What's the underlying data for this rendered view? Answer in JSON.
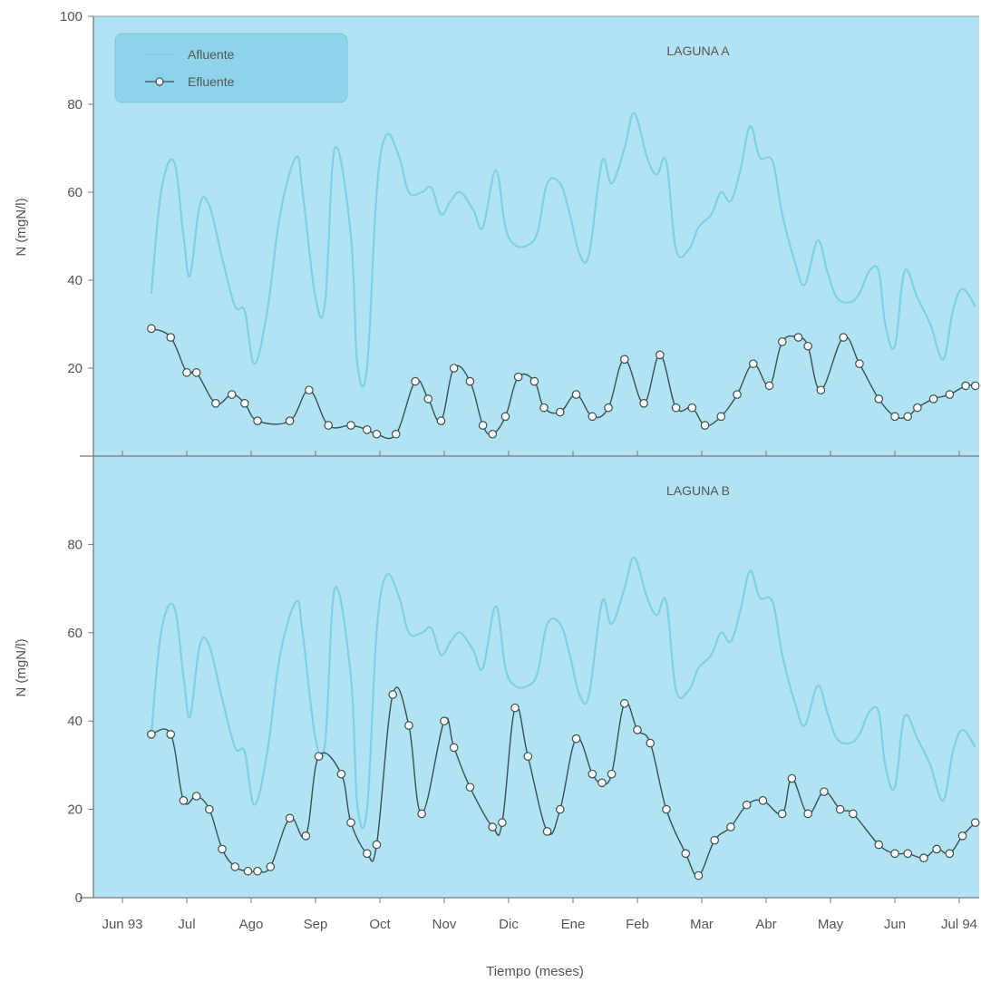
{
  "chart_data": {
    "type": "line",
    "xlabel": "Tiempo (meses)",
    "ylabel": "N (mgN/l)",
    "x_ticks": [
      "Jun 93",
      "Jul",
      "Ago",
      "Sep",
      "Oct",
      "Nov",
      "Dic",
      "Ene",
      "Feb",
      "Mar",
      "Abr",
      "May",
      "Jun",
      "Jul 94"
    ],
    "colors": {
      "afluente": "#7fd0e4",
      "efluente": "#3a4f55",
      "panel_bg": "#b2e3f2",
      "legend_bg": "#8fd3ea"
    },
    "legend": {
      "position": "top-left",
      "entries": [
        {
          "key": "afluente",
          "label": "Afluente"
        },
        {
          "key": "efluente",
          "label": "Efluente"
        }
      ]
    },
    "panels": [
      {
        "title": "LAGUNA A",
        "ylim": [
          0,
          100
        ],
        "y_ticks": [
          "100",
          "80",
          "60",
          "40",
          "20"
        ],
        "series": [
          {
            "name": "Afluente",
            "key": "afluente",
            "x": [
              0.45,
              0.6,
              0.8,
              0.95,
              1.05,
              1.2,
              1.35,
              1.55,
              1.75,
              1.9,
              2.05,
              2.25,
              2.45,
              2.7,
              2.8,
              3.0,
              3.15,
              3.3,
              3.55,
              3.65,
              3.8,
              3.95,
              4.1,
              4.3,
              4.45,
              4.65,
              4.8,
              4.95,
              5.1,
              5.25,
              5.45,
              5.6,
              5.8,
              5.95,
              6.1,
              6.3,
              6.45,
              6.6,
              6.8,
              6.95,
              7.1,
              7.25,
              7.45,
              7.6,
              7.8,
              7.95,
              8.15,
              8.3,
              8.45,
              8.6,
              8.8,
              8.95,
              9.15,
              9.3,
              9.45,
              9.6,
              9.75,
              9.9,
              10.1,
              10.25,
              10.45,
              10.6,
              10.8,
              10.95,
              11.1,
              11.3,
              11.45,
              11.6,
              11.75,
              11.85,
              12.0,
              12.15,
              12.35,
              12.55,
              12.75,
              12.9,
              13.05,
              13.25
            ],
            "y": [
              37,
              60,
              67,
              50,
              41,
              57,
              57,
              45,
              34,
              33,
              21,
              33,
              55,
              68,
              60,
              36,
              35,
              70,
              50,
              21,
              20,
              60,
              73,
              68,
              60,
              60,
              61,
              55,
              58,
              60,
              56,
              52,
              65,
              52,
              48,
              48,
              51,
              62,
              62,
              55,
              46,
              46,
              67,
              62,
              70,
              78,
              68,
              64,
              67,
              47,
              47,
              52,
              55,
              60,
              58,
              65,
              75,
              68,
              67,
              55,
              44,
              39,
              49,
              42,
              36,
              35,
              37,
              42,
              42,
              30,
              25,
              42,
              36,
              30,
              22,
              33,
              38,
              34
            ],
            "values": [
              37,
              60,
              67,
              50,
              41,
              57,
              57,
              45,
              34,
              33,
              21,
              33,
              55,
              68,
              60,
              36,
              35,
              70,
              50,
              21,
              20,
              60,
              73,
              68,
              60,
              60,
              61,
              55,
              58,
              60,
              56,
              52,
              65,
              52,
              48,
              48,
              51,
              62,
              62,
              55,
              46,
              46,
              67,
              62,
              70,
              78,
              68,
              64,
              67,
              47,
              47,
              52,
              55,
              60,
              58,
              65,
              75,
              68,
              67,
              55,
              44,
              39,
              49,
              42,
              36,
              35,
              37,
              42,
              42,
              30,
              25,
              42,
              36,
              30,
              22,
              33,
              38,
              34
            ]
          },
          {
            "name": "Efluente",
            "key": "efluente",
            "x": [
              0.45,
              0.75,
              1.0,
              1.15,
              1.45,
              1.7,
              1.9,
              2.1,
              2.6,
              2.9,
              3.2,
              3.55,
              3.8,
              3.95,
              4.25,
              4.55,
              4.75,
              4.95,
              5.15,
              5.4,
              5.6,
              5.75,
              5.95,
              6.15,
              6.4,
              6.55,
              6.8,
              7.05,
              7.3,
              7.55,
              7.8,
              8.1,
              8.35,
              8.6,
              8.85,
              9.05,
              9.3,
              9.55,
              9.8,
              10.05,
              10.25,
              10.5,
              10.65,
              10.85,
              11.2,
              11.45,
              11.75,
              12.0,
              12.2,
              12.35,
              12.6,
              12.85,
              13.1,
              13.25
            ],
            "y": [
              29,
              27,
              19,
              19,
              12,
              14,
              12,
              8,
              8,
              15,
              7,
              7,
              6,
              5,
              5,
              17,
              13,
              8,
              20,
              17,
              7,
              5,
              9,
              18,
              17,
              11,
              10,
              14,
              9,
              11,
              22,
              12,
              23,
              11,
              11,
              7,
              9,
              14,
              21,
              16,
              26,
              27,
              25,
              15,
              27,
              21,
              13,
              9,
              9,
              11,
              13,
              14,
              16,
              16
            ],
            "values": [
              29,
              27,
              19,
              19,
              12,
              14,
              12,
              8,
              8,
              15,
              7,
              7,
              6,
              5,
              5,
              17,
              13,
              8,
              20,
              17,
              7,
              5,
              9,
              18,
              17,
              11,
              10,
              14,
              9,
              11,
              22,
              12,
              23,
              11,
              11,
              7,
              9,
              14,
              21,
              16,
              26,
              27,
              25,
              15,
              27,
              21,
              13,
              9,
              9,
              11,
              13,
              14,
              16,
              16
            ]
          }
        ]
      },
      {
        "title": "LAGUNA B",
        "ylim": [
          0,
          100
        ],
        "y_ticks": [
          "80",
          "60",
          "40",
          "20",
          "0"
        ],
        "series": [
          {
            "name": "Afluente",
            "key": "afluente",
            "x": [
              0.45,
              0.6,
              0.8,
              0.95,
              1.05,
              1.2,
              1.35,
              1.55,
              1.75,
              1.9,
              2.05,
              2.25,
              2.45,
              2.7,
              2.8,
              3.0,
              3.15,
              3.3,
              3.55,
              3.65,
              3.8,
              3.95,
              4.1,
              4.3,
              4.45,
              4.65,
              4.8,
              4.95,
              5.1,
              5.25,
              5.45,
              5.6,
              5.8,
              5.95,
              6.1,
              6.3,
              6.45,
              6.6,
              6.8,
              6.95,
              7.1,
              7.25,
              7.45,
              7.6,
              7.8,
              7.95,
              8.15,
              8.3,
              8.45,
              8.6,
              8.8,
              8.95,
              9.15,
              9.3,
              9.45,
              9.6,
              9.75,
              9.9,
              10.1,
              10.25,
              10.45,
              10.6,
              10.8,
              10.95,
              11.1,
              11.3,
              11.45,
              11.6,
              11.75,
              11.85,
              12.0,
              12.15,
              12.35,
              12.55,
              12.75,
              12.9,
              13.05,
              13.25
            ],
            "y": [
              37,
              60,
              66,
              50,
              41,
              57,
              57,
              45,
              34,
              33,
              21,
              33,
              55,
              67,
              60,
              36,
              35,
              70,
              50,
              21,
              20,
              60,
              73,
              68,
              60,
              60,
              61,
              55,
              58,
              60,
              56,
              52,
              66,
              52,
              48,
              48,
              51,
              62,
              62,
              55,
              46,
              46,
              67,
              62,
              70,
              77,
              68,
              64,
              67,
              47,
              47,
              52,
              55,
              60,
              58,
              65,
              74,
              68,
              67,
              55,
              44,
              39,
              48,
              42,
              36,
              35,
              37,
              42,
              42,
              30,
              25,
              41,
              36,
              30,
              22,
              33,
              38,
              34
            ],
            "values": [
              37,
              60,
              66,
              50,
              41,
              57,
              57,
              45,
              34,
              33,
              21,
              33,
              55,
              67,
              60,
              36,
              35,
              70,
              50,
              21,
              20,
              60,
              73,
              68,
              60,
              60,
              61,
              55,
              58,
              60,
              56,
              52,
              66,
              52,
              48,
              48,
              51,
              62,
              62,
              55,
              46,
              46,
              67,
              62,
              70,
              77,
              68,
              64,
              67,
              47,
              47,
              52,
              55,
              60,
              58,
              65,
              74,
              68,
              67,
              55,
              44,
              39,
              48,
              42,
              36,
              35,
              37,
              42,
              42,
              30,
              25,
              41,
              36,
              30,
              22,
              33,
              38,
              34
            ]
          },
          {
            "name": "Efluente",
            "key": "efluente",
            "x": [
              0.45,
              0.75,
              0.95,
              1.15,
              1.35,
              1.55,
              1.75,
              1.95,
              2.1,
              2.3,
              2.6,
              2.85,
              3.05,
              3.4,
              3.55,
              3.8,
              3.95,
              4.2,
              4.45,
              4.65,
              5.0,
              5.15,
              5.4,
              5.75,
              5.9,
              6.1,
              6.3,
              6.6,
              6.8,
              7.05,
              7.3,
              7.45,
              7.6,
              7.8,
              8.0,
              8.2,
              8.45,
              8.75,
              8.95,
              9.2,
              9.45,
              9.7,
              9.95,
              10.25,
              10.4,
              10.65,
              10.9,
              11.15,
              11.35,
              11.75,
              12.0,
              12.2,
              12.45,
              12.65,
              12.85,
              13.05,
              13.25
            ],
            "y": [
              37,
              37,
              22,
              23,
              20,
              11,
              7,
              6,
              6,
              7,
              18,
              14,
              32,
              28,
              17,
              10,
              12,
              46,
              39,
              19,
              40,
              34,
              25,
              16,
              17,
              43,
              32,
              15,
              20,
              36,
              28,
              26,
              28,
              44,
              38,
              35,
              20,
              10,
              5,
              13,
              16,
              21,
              22,
              19,
              27,
              19,
              24,
              20,
              19,
              12,
              10,
              10,
              9,
              11,
              10,
              14,
              17
            ],
            "values": [
              37,
              37,
              22,
              23,
              20,
              11,
              7,
              6,
              6,
              7,
              18,
              14,
              32,
              28,
              17,
              10,
              12,
              46,
              39,
              19,
              40,
              34,
              25,
              16,
              17,
              43,
              32,
              15,
              20,
              36,
              28,
              26,
              28,
              44,
              38,
              35,
              20,
              10,
              5,
              13,
              16,
              21,
              22,
              19,
              27,
              19,
              24,
              20,
              19,
              12,
              10,
              10,
              9,
              11,
              10,
              14,
              17
            ]
          }
        ]
      }
    ]
  }
}
